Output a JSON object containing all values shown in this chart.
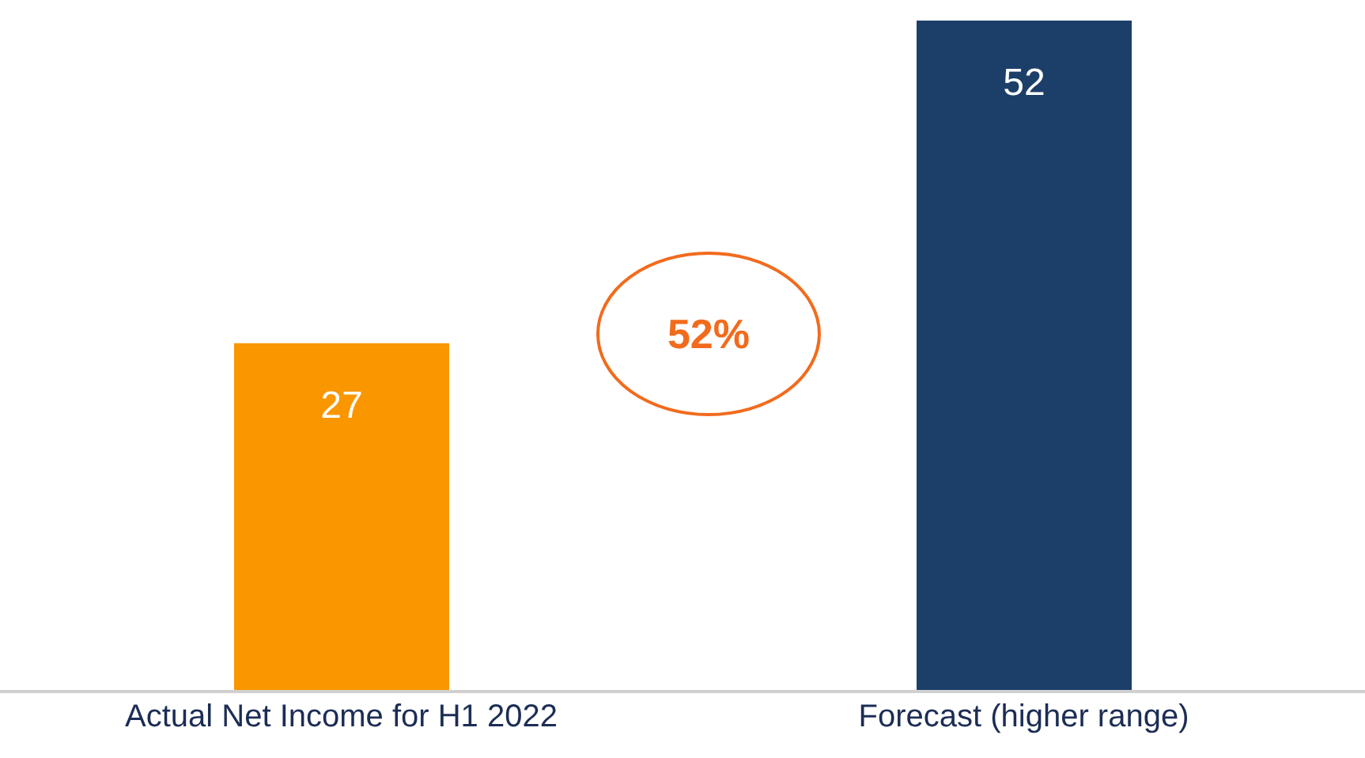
{
  "chart_data": {
    "type": "bar",
    "categories": [
      "Actual Net Income for H1 2022",
      "Forecast (higher range)"
    ],
    "values": [
      27,
      52
    ],
    "colors": [
      "#fa9600",
      "#1c3f6a"
    ],
    "data_labels": true,
    "annotations": [
      "52%"
    ]
  }
}
